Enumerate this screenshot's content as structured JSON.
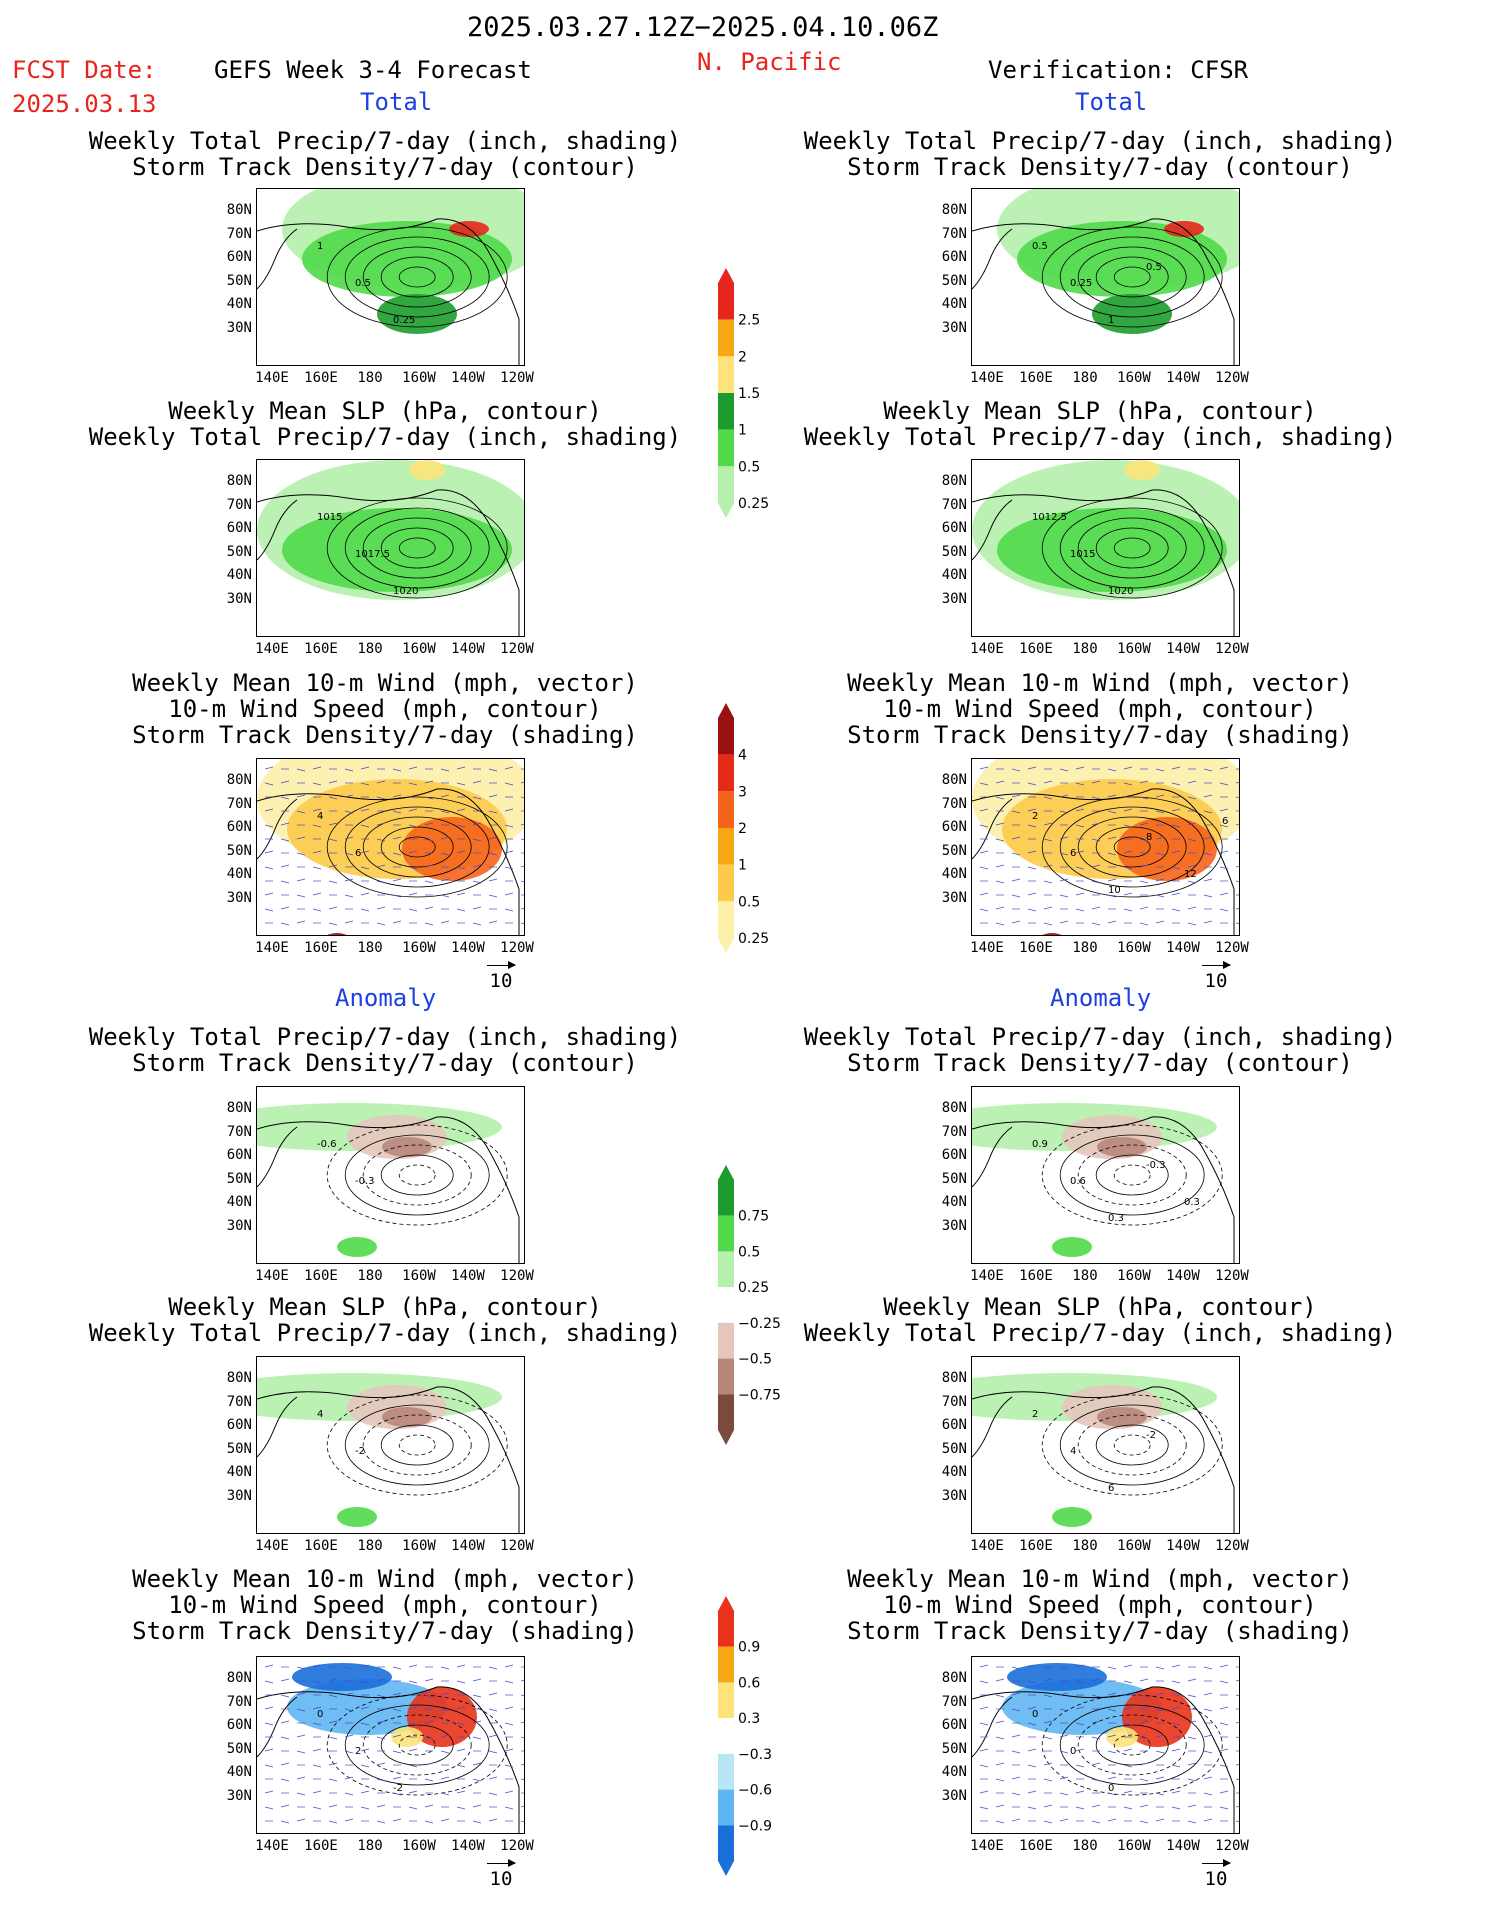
{
  "header": {
    "period": "2025.03.27.12Z−2025.04.10.06Z",
    "fcst_label": "FCST Date:",
    "fcst_date": "2025.03.13",
    "model": "GEFS Week 3-4 Forecast",
    "region": "N. Pacific",
    "verification": "Verification: CFSR"
  },
  "sections": {
    "total_left": "Total",
    "total_right": "Total",
    "anom_left": "Anomaly",
    "anom_right": "Anomaly"
  },
  "titles": {
    "precip_storm": [
      "Weekly Total Precip/7-day (inch, shading)",
      "Storm Track Density/7-day (contour)"
    ],
    "slp_precip": [
      "Weekly Mean SLP (hPa, contour)",
      "Weekly Total Precip/7-day (inch, shading)"
    ],
    "wind_storm": [
      "Weekly Mean 10-m Wind (mph, vector)",
      "10-m Wind Speed (mph, contour)",
      "Storm Track Density/7-day (shading)"
    ]
  },
  "axes": {
    "lat": [
      "80N",
      "70N",
      "60N",
      "50N",
      "40N",
      "30N"
    ],
    "lon": [
      "140E",
      "160E",
      "180",
      "160W",
      "140W",
      "120W"
    ]
  },
  "vector_ref": "10",
  "panel_labels": {
    "p1": [
      "1",
      "0.5",
      "0.25"
    ],
    "p2": [
      "0.5",
      "0.25",
      "1",
      "0.5"
    ],
    "p3": [
      "1015",
      "1017.5",
      "1020"
    ],
    "p4": [
      "1012.5",
      "1015",
      "1020"
    ],
    "p5": [
      "4",
      "6"
    ],
    "p6": [
      "2",
      "6",
      "10",
      "8",
      "12",
      "6"
    ],
    "p7": [
      "-0.6",
      "-0.3"
    ],
    "p8": [
      "0.9",
      "0.6",
      "0.3",
      "-0.3",
      "0.3"
    ],
    "p9": [
      "4",
      "-2"
    ],
    "p10": [
      "2",
      "4",
      "6",
      "-2"
    ],
    "p11": [
      "0",
      "2",
      "-2"
    ],
    "p12": [
      "0",
      "0",
      "0"
    ]
  },
  "colorbars": {
    "precip": {
      "labels": [
        "2.5",
        "2",
        "1.5",
        "1",
        "0.5",
        "0.25"
      ],
      "colors": [
        "#e6261c",
        "#f7a614",
        "#fde37a",
        "#1c9c2c",
        "#50d94a",
        "#b5f0ac"
      ]
    },
    "storm": {
      "labels": [
        "4",
        "3",
        "2",
        "1",
        "0.5",
        "0.25"
      ],
      "colors": [
        "#9a1111",
        "#e32b16",
        "#f5641b",
        "#f7a614",
        "#fdca4b",
        "#fdf0a8"
      ]
    },
    "precip_anom": {
      "labels": [
        "0.75",
        "0.5",
        "0.25",
        "−0.25",
        "−0.5",
        "−0.75"
      ],
      "colors": [
        "#1c9c2c",
        "#50d94a",
        "#b5f0ac",
        "#ffffff",
        "#e6c5bd",
        "#b8877a",
        "#7b4a3c"
      ]
    },
    "storm_anom": {
      "labels": [
        "0.9",
        "0.6",
        "0.3",
        "−0.3",
        "−0.6",
        "−0.9"
      ],
      "colors": [
        "#e8321a",
        "#f7a614",
        "#fde37a",
        "#ffffff",
        "#b8e6f7",
        "#5fb6f2",
        "#1b6fd9"
      ]
    }
  }
}
